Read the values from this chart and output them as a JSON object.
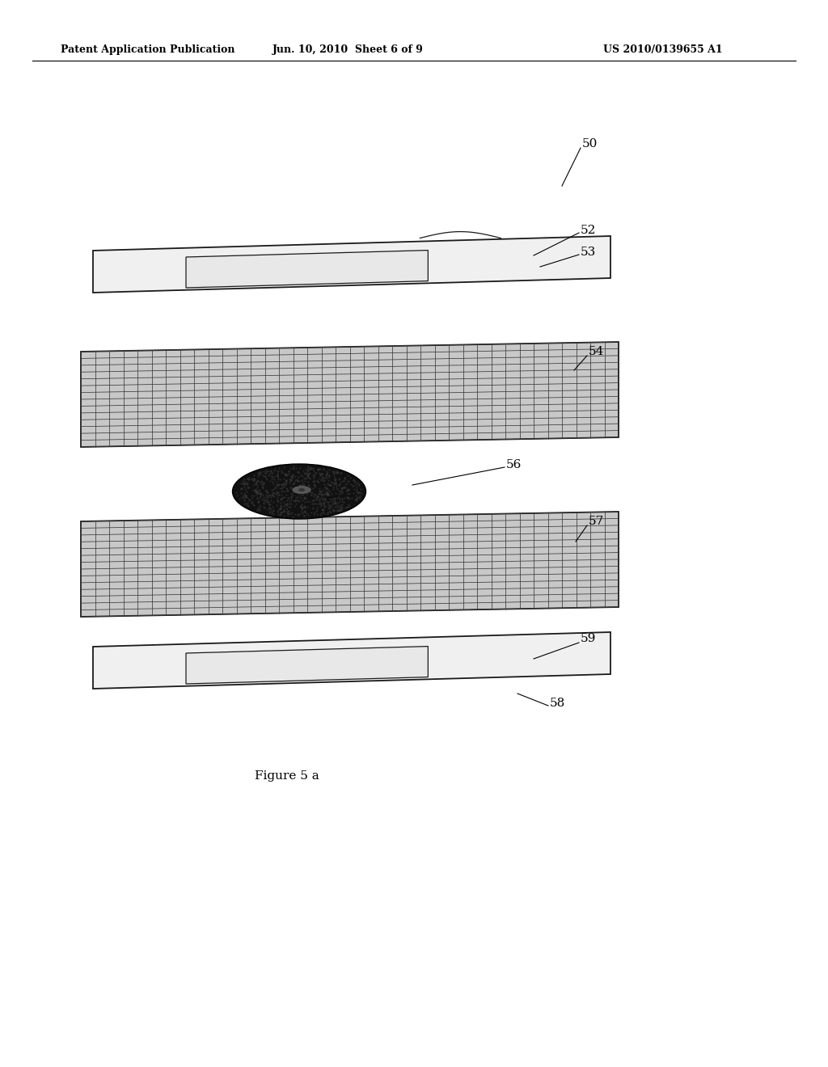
{
  "title_left": "Patent Application Publication",
  "title_mid": "Jun. 10, 2010  Sheet 6 of 9",
  "title_right": "US 2010/0139655 A1",
  "figure_label": "Figure 5 a",
  "bg_color": "#ffffff",
  "line_color": "#1a1a1a",
  "grid_color_dark": "#3a3a3a",
  "grid_color_light": "#888888",
  "dark_color": "#111111"
}
